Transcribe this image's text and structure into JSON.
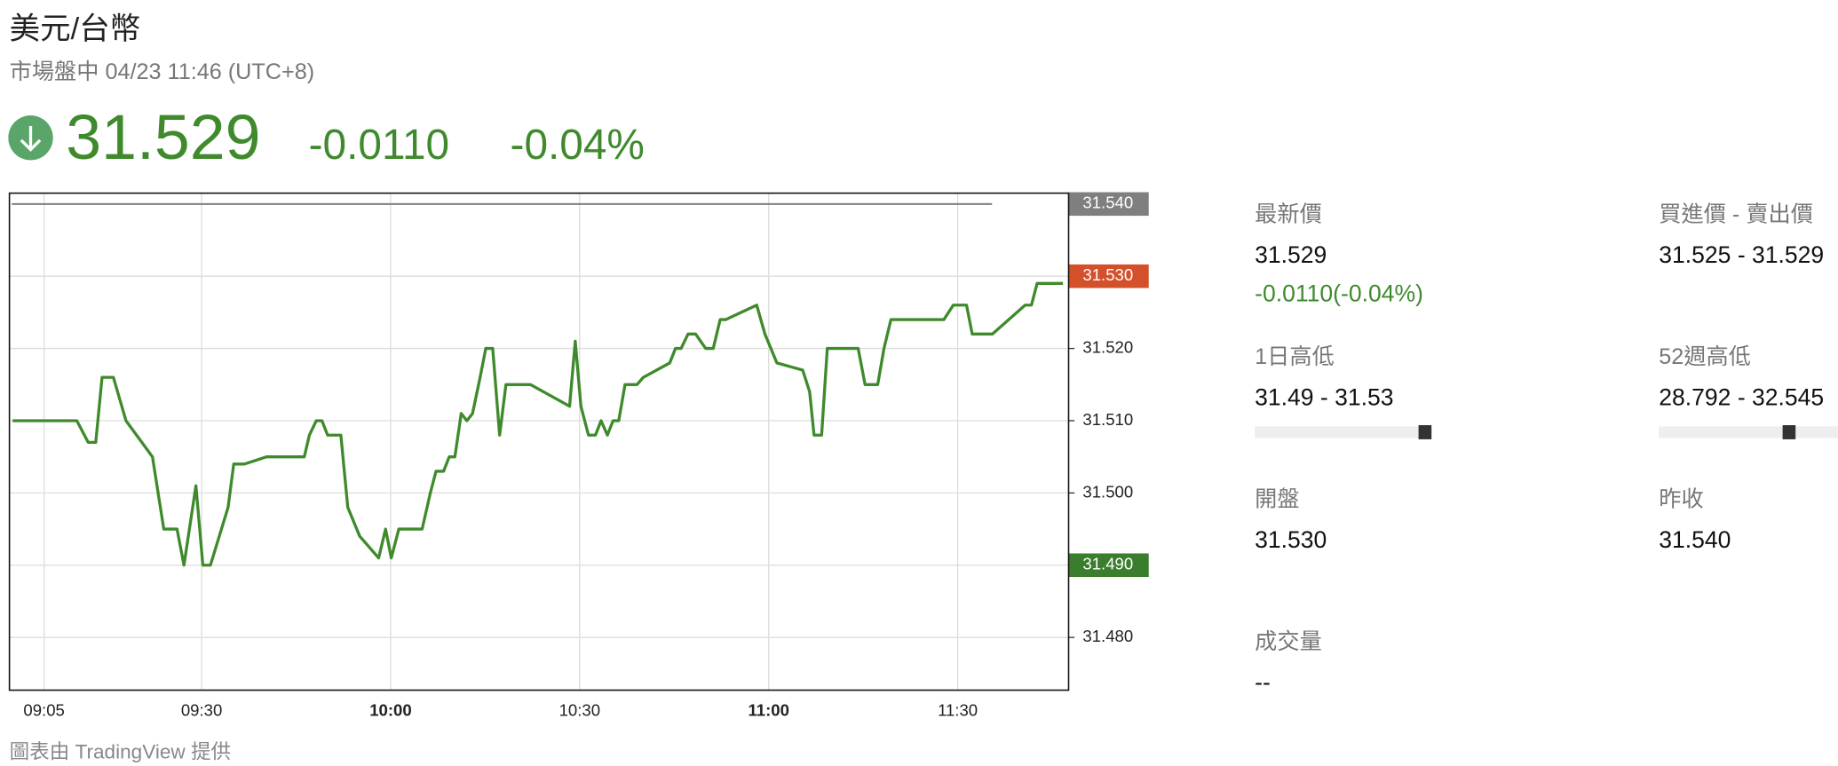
{
  "header": {
    "title": "美元/台幣",
    "subtitle": "市場盤中 04/23 11:46 (UTC+8)"
  },
  "quote": {
    "price": "31.529",
    "change": "-0.0110",
    "change_pct": "-0.04%"
  },
  "chart_data": {
    "type": "line",
    "color": "#3f8a2c",
    "grid": true,
    "x": [
      540,
      550.2,
      552,
      553.2,
      554.2,
      556,
      558,
      562.2,
      564,
      566.1,
      567.2,
      569.1,
      570.2,
      571.4,
      574.2,
      575.1,
      576.8,
      580.3,
      586.3,
      587.1,
      588.2,
      589.1,
      590,
      592.1,
      593.2,
      595.1,
      598.1,
      599.2,
      600.1,
      601.3,
      605,
      606.3,
      607.2,
      608.4,
      609.3,
      610.2,
      611.2,
      612.1,
      613,
      614.2,
      615.1,
      616.2,
      617.3,
      618.3,
      622.2,
      628.4,
      629.3,
      630.2,
      631.4,
      632.5,
      633.4,
      634.4,
      635.3,
      636.2,
      637.2,
      639.1,
      640.1,
      644.3,
      645.2,
      646.1,
      647.2,
      648.4,
      650,
      651.2,
      652.3,
      653.2,
      658.1,
      659.4,
      661.3,
      665.4,
      666.5,
      667.2,
      668.4,
      669.3,
      674.2,
      675.3,
      677.3,
      678.3,
      679.4,
      687.8,
      689.3,
      691.4,
      692.3,
      695.5,
      700.7,
      701.7,
      702.6,
      706.7
    ],
    "values": [
      31.51,
      31.51,
      31.507,
      31.507,
      31.516,
      31.516,
      31.51,
      31.505,
      31.495,
      31.495,
      31.49,
      31.501,
      31.49,
      31.49,
      31.498,
      31.504,
      31.504,
      31.505,
      31.505,
      31.508,
      31.51,
      31.51,
      31.508,
      31.508,
      31.498,
      31.494,
      31.491,
      31.495,
      31.491,
      31.495,
      31.495,
      31.5,
      31.503,
      31.503,
      31.505,
      31.505,
      31.511,
      31.51,
      31.511,
      31.516,
      31.52,
      31.52,
      31.508,
      31.515,
      31.515,
      31.512,
      31.521,
      31.512,
      31.508,
      31.508,
      31.51,
      31.508,
      31.51,
      31.51,
      31.515,
      31.515,
      31.516,
      31.518,
      31.52,
      31.52,
      31.522,
      31.522,
      31.52,
      31.52,
      31.524,
      31.524,
      31.526,
      31.522,
      31.518,
      31.517,
      31.514,
      31.508,
      31.508,
      31.52,
      31.52,
      31.515,
      31.515,
      31.52,
      31.524,
      31.524,
      31.526,
      31.526,
      31.522,
      31.522,
      31.526,
      31.526,
      31.529,
      31.529
    ],
    "xlim": [
      539.5,
      707.6
    ],
    "xticks": [
      {
        "value": 545,
        "label": "09:05"
      },
      {
        "value": 570,
        "label": "09:30"
      },
      {
        "value": 600,
        "label": "10:00",
        "bold": true
      },
      {
        "value": 630,
        "label": "10:30"
      },
      {
        "value": 660,
        "label": "11:00",
        "bold": true
      },
      {
        "value": 690,
        "label": "11:30"
      }
    ],
    "ylim": [
      31.4727,
      31.5415
    ],
    "yticks": [
      {
        "value": 31.48,
        "label": "31.480"
      },
      {
        "value": 31.5,
        "label": "31.500"
      },
      {
        "value": 31.51,
        "label": "31.510"
      },
      {
        "value": 31.52,
        "label": "31.520"
      }
    ],
    "tags": [
      {
        "value": 31.54,
        "label": "31.540",
        "color": "#7f7f7f"
      },
      {
        "value": 31.53,
        "label": "31.530",
        "color": "#d4502b"
      },
      {
        "value": 31.49,
        "label": "31.490",
        "color": "#3a7d2c"
      }
    ]
  },
  "stats": [
    {
      "label": "最新價",
      "value": "31.529",
      "change": "-0.0110(-0.04%)"
    },
    {
      "label": "買進價 - 賣出價",
      "value": "31.525 - 31.529"
    },
    {
      "label": "1日高低",
      "value": "31.49 - 31.53"
    },
    {
      "label": "52週高低",
      "value": "28.792 - 32.545"
    },
    {
      "label": "開盤",
      "value": "31.530"
    },
    {
      "label": "昨收",
      "value": "31.540"
    },
    {
      "label": "成交量",
      "value": "--"
    }
  ],
  "footer": "圖表由 TradingView 提供"
}
